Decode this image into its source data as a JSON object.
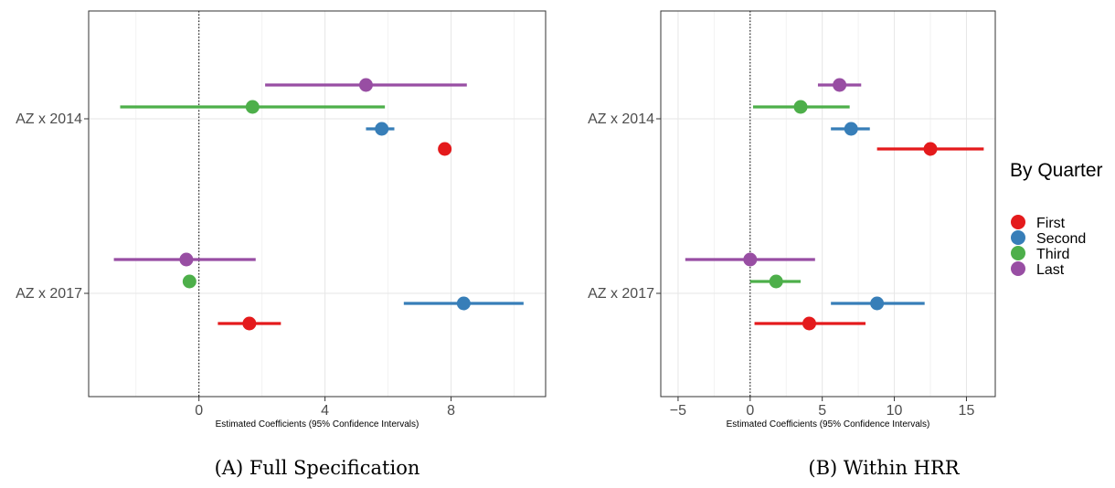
{
  "chart_data": [
    {
      "type": "scatter",
      "subtype": "dot-and-whisker",
      "xlabel": "Estimated Coefficients (95% Confidence Intervals)",
      "ylabel": "",
      "xlim": [
        -3.5,
        11.0
      ],
      "xticks": [
        0,
        4,
        8
      ],
      "categories": [
        "AZ x 2014",
        "AZ x 2017"
      ],
      "reference_line": 0,
      "grid": true,
      "series": [
        {
          "name": "First",
          "color": "#e41a1c",
          "points": [
            {
              "category": "AZ x 2014",
              "estimate": 7.8,
              "lower": null,
              "upper": null
            },
            {
              "category": "AZ x 2017",
              "estimate": 1.6,
              "lower": 0.6,
              "upper": 2.6
            }
          ]
        },
        {
          "name": "Second",
          "color": "#377eb8",
          "points": [
            {
              "category": "AZ x 2014",
              "estimate": 5.8,
              "lower": 5.3,
              "upper": 6.2
            },
            {
              "category": "AZ x 2017",
              "estimate": 8.4,
              "lower": 6.5,
              "upper": 10.3
            }
          ]
        },
        {
          "name": "Third",
          "color": "#4daf4a",
          "points": [
            {
              "category": "AZ x 2014",
              "estimate": 1.7,
              "lower": -2.5,
              "upper": 5.9
            },
            {
              "category": "AZ x 2017",
              "estimate": -0.3,
              "lower": null,
              "upper": null
            }
          ]
        },
        {
          "name": "Last",
          "color": "#984ea3",
          "points": [
            {
              "category": "AZ x 2014",
              "estimate": 5.3,
              "lower": 2.1,
              "upper": 8.5
            },
            {
              "category": "AZ x 2017",
              "estimate": -0.4,
              "lower": -2.7,
              "upper": 1.8
            }
          ]
        }
      ],
      "caption": "(A) Full Specification"
    },
    {
      "type": "scatter",
      "subtype": "dot-and-whisker",
      "xlabel": "Estimated Coefficients (95% Confidence Intervals)",
      "ylabel": "",
      "xlim": [
        -6.2,
        17.0
      ],
      "xticks": [
        -5,
        0,
        5,
        10,
        15
      ],
      "categories": [
        "AZ x 2014",
        "AZ x 2017"
      ],
      "reference_line": 0,
      "grid": true,
      "series": [
        {
          "name": "First",
          "color": "#e41a1c",
          "points": [
            {
              "category": "AZ x 2014",
              "estimate": 12.5,
              "lower": 8.8,
              "upper": 16.2
            },
            {
              "category": "AZ x 2017",
              "estimate": 4.1,
              "lower": 0.3,
              "upper": 8.0
            }
          ]
        },
        {
          "name": "Second",
          "color": "#377eb8",
          "points": [
            {
              "category": "AZ x 2014",
              "estimate": 7.0,
              "lower": 5.6,
              "upper": 8.3
            },
            {
              "category": "AZ x 2017",
              "estimate": 8.8,
              "lower": 5.6,
              "upper": 12.1
            }
          ]
        },
        {
          "name": "Third",
          "color": "#4daf4a",
          "points": [
            {
              "category": "AZ x 2014",
              "estimate": 3.5,
              "lower": 0.2,
              "upper": 6.9
            },
            {
              "category": "AZ x 2017",
              "estimate": 1.8,
              "lower": 0.0,
              "upper": 3.5
            }
          ]
        },
        {
          "name": "Last",
          "color": "#984ea3",
          "points": [
            {
              "category": "AZ x 2014",
              "estimate": 6.2,
              "lower": 4.7,
              "upper": 7.7
            },
            {
              "category": "AZ x 2017",
              "estimate": 0.0,
              "lower": -4.5,
              "upper": 4.5
            }
          ]
        }
      ],
      "caption": "(B) Within HRR"
    }
  ],
  "legend": {
    "title": "By Quarter",
    "placement": "right",
    "items": [
      {
        "label": "First",
        "color": "#e41a1c"
      },
      {
        "label": "Second",
        "color": "#377eb8"
      },
      {
        "label": "Third",
        "color": "#4daf4a"
      },
      {
        "label": "Last",
        "color": "#984ea3"
      }
    ]
  }
}
